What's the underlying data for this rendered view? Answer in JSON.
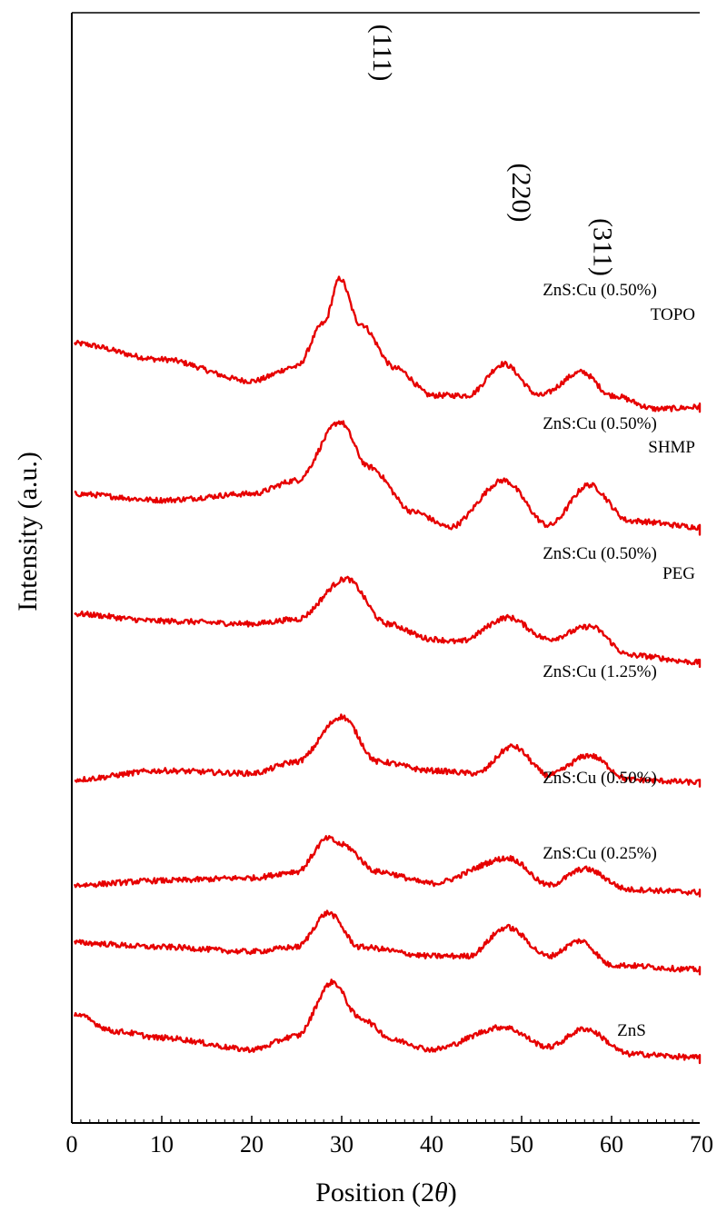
{
  "chart_data": {
    "type": "line",
    "xlabel_prefix": "Position (2",
    "xlabel_symbol": "θ",
    "xlabel_suffix": ")",
    "ylabel": "Intensity (a.u.)",
    "xlim": [
      0,
      80
    ],
    "xticks": [
      "0",
      "10",
      "20",
      "30",
      "40",
      "50",
      "60",
      "70"
    ],
    "peak_labels": [
      {
        "text": "(111)",
        "x": 32.5
      },
      {
        "text": "(220)",
        "x": 48.0
      },
      {
        "text": "(311)",
        "x": 57.0
      }
    ],
    "line_color": "#e60000",
    "series": [
      {
        "name": "ZnS:Cu (0.50%)",
        "subname": "TOPO",
        "base": 0.65,
        "peaks": [
          [
            29.8,
            1.5
          ],
          [
            48.0,
            0.55
          ],
          [
            56.7,
            0.46
          ]
        ],
        "samples": [
          [
            0,
            0.78
          ],
          [
            10,
            0.6
          ],
          [
            20,
            0.36
          ],
          [
            25,
            0.52
          ],
          [
            28,
            1.0
          ],
          [
            29.8,
            1.5
          ],
          [
            32,
            1.0
          ],
          [
            36,
            0.5
          ],
          [
            40,
            0.2
          ],
          [
            44,
            0.2
          ],
          [
            48,
            0.55
          ],
          [
            52,
            0.2
          ],
          [
            56.7,
            0.46
          ],
          [
            60,
            0.2
          ],
          [
            65,
            0.05
          ],
          [
            72,
            0.08
          ],
          [
            80,
            0.04
          ]
        ]
      },
      {
        "name": "ZnS:Cu (0.50%)",
        "subname": "SHMP",
        "base": 0.52,
        "peaks": [
          [
            29.8,
            1.35
          ],
          [
            48.0,
            0.7
          ],
          [
            57.5,
            0.65
          ]
        ],
        "samples": [
          [
            0,
            0.55
          ],
          [
            10,
            0.48
          ],
          [
            20,
            0.55
          ],
          [
            25,
            0.7
          ],
          [
            29.8,
            1.35
          ],
          [
            33,
            0.85
          ],
          [
            38,
            0.35
          ],
          [
            42,
            0.18
          ],
          [
            48,
            0.7
          ],
          [
            53,
            0.2
          ],
          [
            57.5,
            0.65
          ],
          [
            62,
            0.25
          ],
          [
            70,
            0.18
          ],
          [
            80,
            0.12
          ]
        ]
      },
      {
        "name": "ZnS:Cu (0.50%)",
        "subname": "PEG",
        "base": 0.39,
        "peaks": [
          [
            30.5,
            1.05
          ],
          [
            48.5,
            0.62
          ],
          [
            57.6,
            0.52
          ]
        ],
        "samples": [
          [
            0,
            0.66
          ],
          [
            10,
            0.58
          ],
          [
            20,
            0.55
          ],
          [
            25,
            0.6
          ],
          [
            30.5,
            1.05
          ],
          [
            35,
            0.55
          ],
          [
            40,
            0.38
          ],
          [
            43,
            0.35
          ],
          [
            48.5,
            0.62
          ],
          [
            53,
            0.38
          ],
          [
            57.6,
            0.52
          ],
          [
            62,
            0.2
          ],
          [
            70,
            0.12
          ],
          [
            80,
            0.1
          ]
        ]
      },
      {
        "name": "ZnS:Cu (1.25%)",
        "subname": "",
        "base": 0.27,
        "peaks": [
          [
            30.0,
            0.85
          ],
          [
            49.0,
            0.52
          ],
          [
            57.5,
            0.42
          ]
        ],
        "samples": [
          [
            0,
            0.15
          ],
          [
            10,
            0.25
          ],
          [
            20,
            0.22
          ],
          [
            25,
            0.35
          ],
          [
            30,
            0.85
          ],
          [
            34,
            0.35
          ],
          [
            40,
            0.25
          ],
          [
            45,
            0.22
          ],
          [
            49,
            0.52
          ],
          [
            53,
            0.2
          ],
          [
            57.5,
            0.42
          ],
          [
            62,
            0.15
          ],
          [
            70,
            0.12
          ],
          [
            80,
            0.1
          ]
        ]
      },
      {
        "name": "ZnS:Cu (0.50%)",
        "subname": "",
        "base": 0.16,
        "peaks": [
          [
            28.5,
            0.72
          ],
          [
            30.0,
            0.65
          ],
          [
            48.6,
            0.5
          ],
          [
            57.0,
            0.38
          ]
        ],
        "samples": [
          [
            0,
            0.2
          ],
          [
            10,
            0.25
          ],
          [
            20,
            0.28
          ],
          [
            25,
            0.35
          ],
          [
            28.5,
            0.72
          ],
          [
            30,
            0.65
          ],
          [
            34,
            0.35
          ],
          [
            40,
            0.22
          ],
          [
            48.6,
            0.5
          ],
          [
            53,
            0.2
          ],
          [
            57,
            0.38
          ],
          [
            62,
            0.15
          ],
          [
            70,
            0.12
          ],
          [
            80,
            0.1
          ]
        ]
      },
      {
        "name": "ZnS:Cu (0.25%)",
        "subname": "",
        "base": 0.08,
        "peaks": [
          [
            28.5,
            0.78
          ],
          [
            48.4,
            0.62
          ],
          [
            56.5,
            0.47
          ]
        ],
        "samples": [
          [
            0,
            0.45
          ],
          [
            10,
            0.4
          ],
          [
            20,
            0.35
          ],
          [
            25,
            0.4
          ],
          [
            28.5,
            0.78
          ],
          [
            32,
            0.4
          ],
          [
            40,
            0.3
          ],
          [
            44,
            0.3
          ],
          [
            48.4,
            0.62
          ],
          [
            53,
            0.3
          ],
          [
            56.5,
            0.47
          ],
          [
            60,
            0.2
          ],
          [
            70,
            0.15
          ],
          [
            80,
            0.12
          ]
        ]
      },
      {
        "name": "ZnS",
        "subname": "",
        "base": 0.0,
        "peaks": [
          [
            29.0,
            0.9
          ],
          [
            48.0,
            0.4
          ],
          [
            57.0,
            0.38
          ]
        ],
        "samples": [
          [
            0,
            0.55
          ],
          [
            5,
            0.35
          ],
          [
            10,
            0.28
          ],
          [
            20,
            0.15
          ],
          [
            25,
            0.3
          ],
          [
            29,
            0.9
          ],
          [
            32,
            0.5
          ],
          [
            36,
            0.25
          ],
          [
            40,
            0.15
          ],
          [
            48,
            0.4
          ],
          [
            53,
            0.18
          ],
          [
            57,
            0.38
          ],
          [
            62,
            0.1
          ],
          [
            70,
            0.06
          ],
          [
            80,
            0.03
          ]
        ]
      }
    ]
  }
}
